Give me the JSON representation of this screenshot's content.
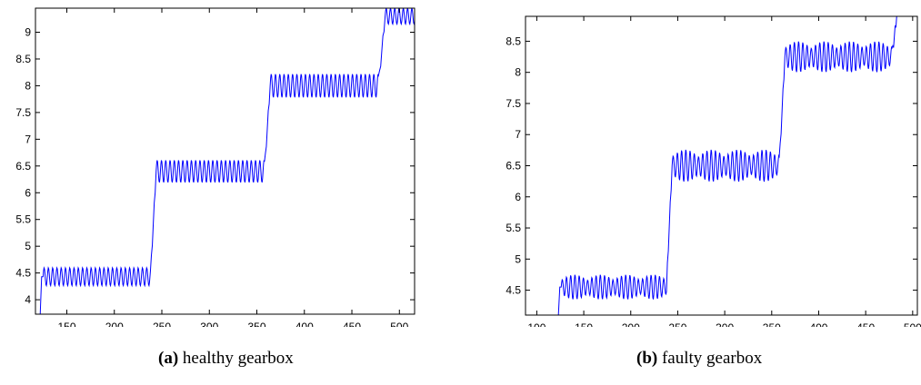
{
  "chart_data": [
    {
      "type": "line",
      "panel_label": "(a)",
      "caption": "healthy gearbox",
      "xlim": [
        117,
        516
      ],
      "ylim": [
        3.73,
        9.45
      ],
      "xticks": [
        150,
        200,
        250,
        300,
        350,
        400,
        450,
        500
      ],
      "yticks": [
        4,
        4.5,
        5,
        5.5,
        6,
        6.5,
        7,
        7.5,
        8,
        8.5,
        9
      ],
      "line_color": "#0000ff",
      "grid": false,
      "segments": [
        {
          "x_start": 125,
          "x_end": 238,
          "center": 4.43,
          "amplitude": 0.17,
          "period": 4.5,
          "envelope": "constant"
        },
        {
          "x_start": 244,
          "x_end": 358,
          "center": 6.4,
          "amplitude": 0.21,
          "period": 4.5,
          "envelope": "constant"
        },
        {
          "x_start": 364,
          "x_end": 478,
          "center": 8.0,
          "amplitude": 0.22,
          "period": 4.5,
          "envelope": "constant"
        },
        {
          "x_start": 485,
          "x_end": 516,
          "center": 9.3,
          "amplitude": 0.15,
          "period": 4.5,
          "envelope": "constant"
        }
      ],
      "transitions": [
        {
          "x": 122,
          "from": 3.73,
          "to": 4.43
        },
        {
          "x_start": 238,
          "x_end": 244,
          "from": 4.43,
          "to": 6.4
        },
        {
          "x_start": 358,
          "x_end": 364,
          "from": 6.4,
          "to": 8.0
        },
        {
          "x_start": 478,
          "x_end": 485,
          "from": 8.0,
          "to": 9.3
        }
      ]
    },
    {
      "type": "line",
      "panel_label": "(b)",
      "caption": "faulty gearbox",
      "xlim": [
        88,
        505
      ],
      "ylim": [
        4.1,
        8.9
      ],
      "xticks": [
        100,
        150,
        200,
        250,
        300,
        350,
        400,
        450,
        500
      ],
      "yticks": [
        4.5,
        5,
        5.5,
        6,
        6.5,
        7,
        7.5,
        8,
        8.5
      ],
      "line_color": "#0000ff",
      "grid": false,
      "segments": [
        {
          "x_start": 126,
          "x_end": 238,
          "center": 4.55,
          "amplitude": 0.2,
          "period": 4.5,
          "envelope": "modulated"
        },
        {
          "x_start": 244,
          "x_end": 358,
          "center": 6.5,
          "amplitude": 0.26,
          "period": 4.5,
          "envelope": "modulated"
        },
        {
          "x_start": 364,
          "x_end": 478,
          "center": 8.25,
          "amplitude": 0.25,
          "period": 4.5,
          "envelope": "modulated"
        }
      ],
      "transitions": [
        {
          "x": 123,
          "from": 4.1,
          "to": 4.55
        },
        {
          "x_start": 238,
          "x_end": 244,
          "from": 4.55,
          "to": 6.5
        },
        {
          "x_start": 358,
          "x_end": 364,
          "from": 6.5,
          "to": 8.25
        },
        {
          "x_start": 478,
          "x_end": 483,
          "from": 8.25,
          "to": 8.9
        }
      ]
    }
  ]
}
